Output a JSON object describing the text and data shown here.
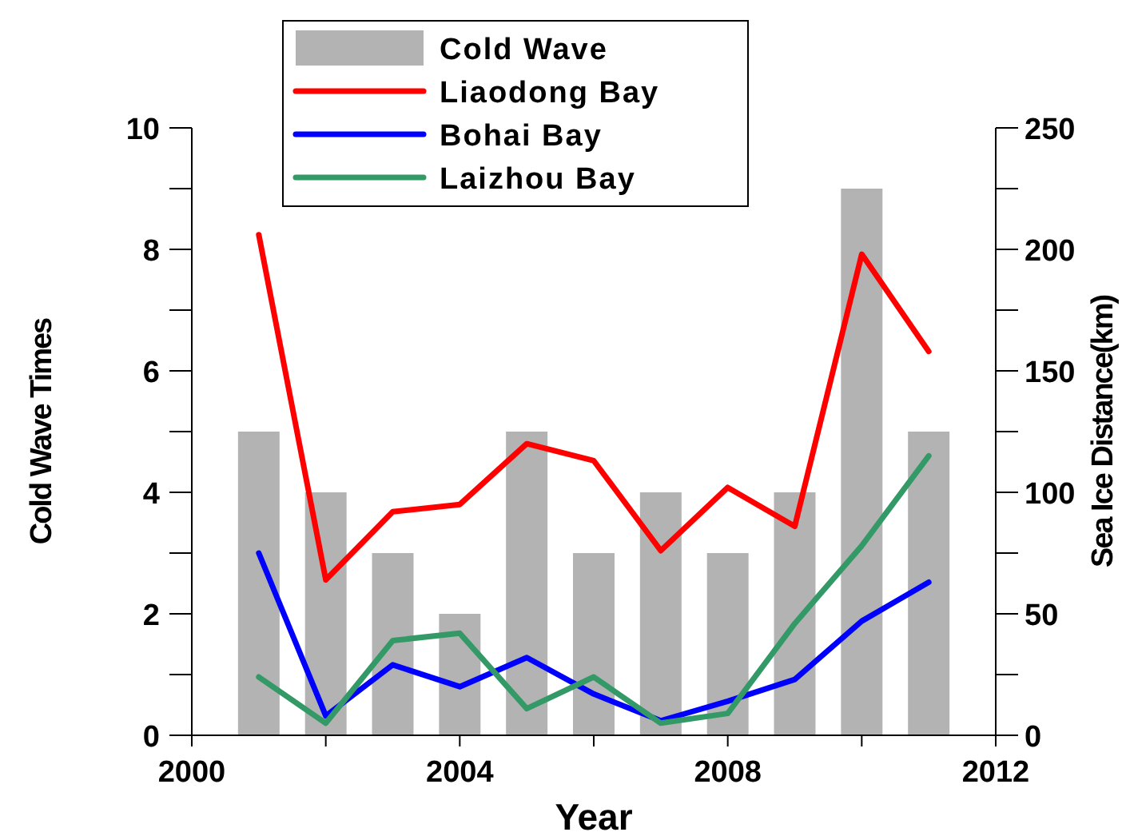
{
  "chart_data": {
    "type": "bar",
    "xlabel": "Year",
    "ylabel": "Cold Wave Times",
    "y2label": "Sea Ice Distance(km)",
    "x": [
      2001,
      2002,
      2003,
      2004,
      2005,
      2006,
      2007,
      2008,
      2009,
      2010,
      2011
    ],
    "series": [
      {
        "name": "Cold Wave",
        "color": "#b3b3b3",
        "values": [
          5,
          4,
          3,
          2,
          5,
          3,
          4,
          3,
          4,
          9,
          5
        ]
      },
      {
        "name": "Liaodong Bay",
        "type": "line",
        "axis": "y2",
        "color": "#ff0000",
        "values": [
          206,
          64,
          92,
          95,
          120,
          113,
          76,
          102,
          86,
          198,
          158
        ]
      },
      {
        "name": "Bohai Bay",
        "type": "line",
        "axis": "y2",
        "color": "#0000ff",
        "values": [
          75,
          8,
          29,
          20,
          32,
          17,
          6,
          14,
          23,
          47,
          63
        ]
      },
      {
        "name": "Laizhou Bay",
        "type": "line",
        "axis": "y2",
        "color": "#339966",
        "values": [
          24,
          5,
          39,
          42,
          11,
          24,
          5,
          9,
          46,
          78,
          115
        ]
      }
    ],
    "xlim": [
      2000,
      2012
    ],
    "xticks": [
      2000,
      {
        "value": 2002,
        "label": null
      },
      2004,
      {
        "value": 2006,
        "label": null
      },
      2008,
      {
        "value": 2010,
        "label": null
      },
      2012
    ],
    "ylim": [
      0,
      10
    ],
    "yticks": [
      0,
      {
        "value": 1,
        "label": null
      },
      2,
      {
        "value": 3,
        "label": null
      },
      4,
      {
        "value": 5,
        "label": null
      },
      6,
      {
        "value": 7,
        "label": null
      },
      8,
      {
        "value": 9,
        "label": null
      },
      10
    ],
    "y2lim": [
      0,
      250
    ],
    "y2ticks": [
      0,
      {
        "value": 25,
        "label": null
      },
      50,
      {
        "value": 75,
        "label": null
      },
      100,
      {
        "value": 125,
        "label": null
      },
      150,
      {
        "value": 175,
        "label": null
      },
      200,
      {
        "value": 225,
        "label": null
      },
      250
    ],
    "legend": "top",
    "grid": false,
    "line_style": "solid",
    "marker": "none"
  }
}
